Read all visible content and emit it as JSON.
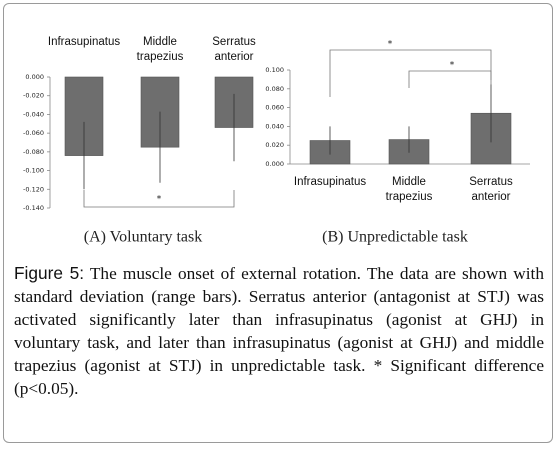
{
  "chart_data": [
    {
      "type": "bar",
      "title": "(A) Voluntary task",
      "categories": [
        "Infrasupinatus",
        "Middle trapezius",
        "Serratus anterior"
      ],
      "values": [
        -0.084,
        -0.075,
        -0.054
      ],
      "errors": [
        0.036,
        0.038,
        0.036
      ],
      "color": "#6e6e6e",
      "ylim": [
        -0.14,
        0
      ],
      "yticks": [
        {
          "value": 0,
          "label": "0.000"
        },
        {
          "value": -0.02,
          "label": "-0.020"
        },
        {
          "value": -0.04,
          "label": "-0.040"
        },
        {
          "value": -0.06,
          "label": "-0.060"
        },
        {
          "value": -0.08,
          "label": "-0.080"
        },
        {
          "value": -0.1,
          "label": "-0.100"
        },
        {
          "value": -0.12,
          "label": "-0.120"
        },
        {
          "value": -0.14,
          "label": "-0.140"
        }
      ],
      "annotations": [
        "*"
      ]
    },
    {
      "type": "bar",
      "title": "(B) Unpredictable task",
      "categories": [
        "Infrasupinatus",
        "Middle trapezius",
        "Serratus anterior"
      ],
      "values": [
        0.025,
        0.026,
        0.054
      ],
      "errors": [
        0.015,
        0.014,
        0.031
      ],
      "color": "#6e6e6e",
      "ylim": [
        0,
        0.1
      ],
      "yticks": [
        {
          "value": 0,
          "label": "0.000"
        },
        {
          "value": 0.02,
          "label": "0.020"
        },
        {
          "value": 0.04,
          "label": "0.040"
        },
        {
          "value": 0.06,
          "label": "0.060"
        },
        {
          "value": 0.08,
          "label": "0.080"
        },
        {
          "value": 0.1,
          "label": "0.100"
        }
      ],
      "annotations": [
        "*",
        "*"
      ]
    }
  ],
  "caption": {
    "label": "Figure 5:",
    "text": "The muscle onset of external rotation. The data are shown with standard deviation (range bars). Serratus anterior (antagonist at STJ) was activated significantly later than infrasupinatus (agonist at GHJ) in voluntary task, and later than infrasupinatus (agonist at GHJ) and middle trapezius (agonist at STJ) in unpredictable task. * Significant difference (p<0.05)."
  }
}
